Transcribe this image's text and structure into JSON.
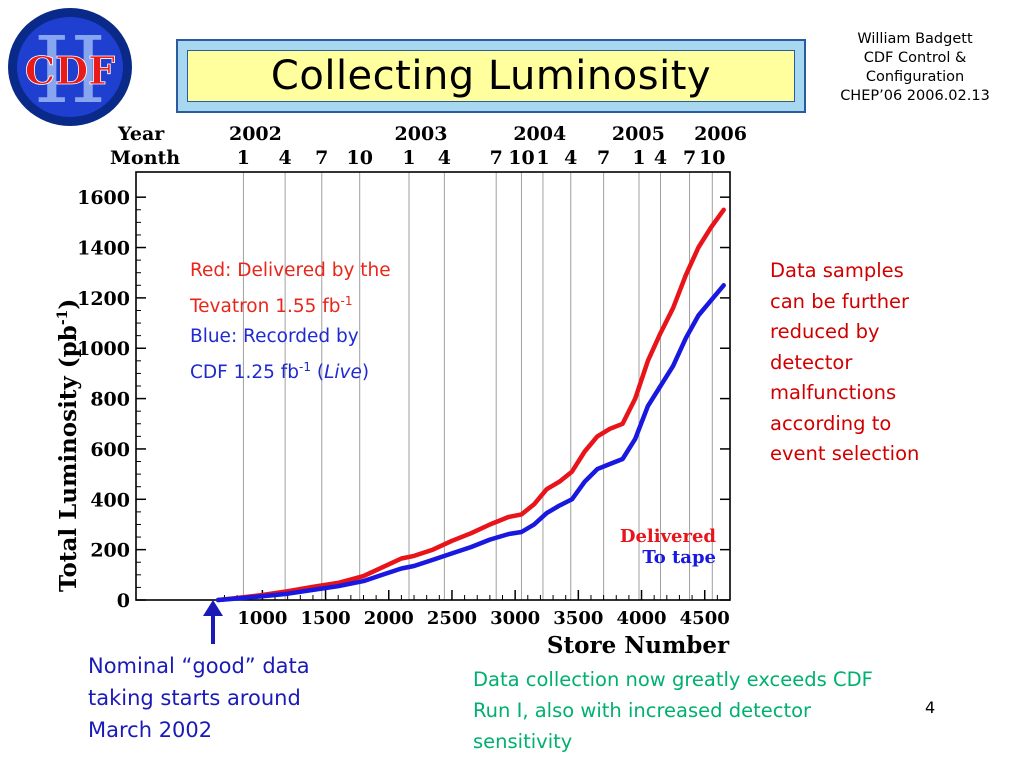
{
  "logo": {
    "text_cdf": "CDF",
    "text_roman": "II",
    "ring_color": "#0a2a8a",
    "fill_color": "#1f3fd0",
    "letter_color": "#e81a1a"
  },
  "title": "Collecting Luminosity",
  "author": [
    "William Badgett",
    "CDF Control &",
    "Configuration",
    "CHEP’06 2006.02.13"
  ],
  "chart_data": {
    "type": "line",
    "title": "",
    "xlabel": "Store Number",
    "ylabel": "Total Luminosity (pb",
    "ylabel_sup": "-1",
    "ylabel_close": ")",
    "xlim": [
      0,
      4700
    ],
    "ylim": [
      0,
      1700
    ],
    "x_ticks": [
      1000,
      1500,
      2000,
      2500,
      3000,
      3500,
      4000,
      4500
    ],
    "x_tick_labels": [
      "1000",
      "1500",
      "2000",
      "2500",
      "3000",
      "3500",
      "4000",
      "4500"
    ],
    "y_ticks": [
      0,
      200,
      400,
      600,
      800,
      1000,
      1200,
      1400,
      1600
    ],
    "y_tick_labels": [
      "0",
      "200",
      "400",
      "600",
      "800",
      "1000",
      "1200",
      "1400",
      "1600"
    ],
    "top_axis": {
      "year_label": "Year",
      "month_label": "Month",
      "years": [
        {
          "label": "2002",
          "x": 850
        },
        {
          "label": "2003",
          "x": 2160
        },
        {
          "label": "2004",
          "x": 3100
        },
        {
          "label": "2005",
          "x": 3880
        },
        {
          "label": "2006",
          "x": 4530
        }
      ],
      "months": [
        {
          "label": "1",
          "x": 850
        },
        {
          "label": "4",
          "x": 1180
        },
        {
          "label": "7",
          "x": 1470
        },
        {
          "label": "10",
          "x": 1770
        },
        {
          "label": "1",
          "x": 2160
        },
        {
          "label": "4",
          "x": 2440
        },
        {
          "label": "7",
          "x": 2850
        },
        {
          "label": "10",
          "x": 3050
        },
        {
          "label": "1",
          "x": 3220
        },
        {
          "label": "4",
          "x": 3440
        },
        {
          "label": "7",
          "x": 3700
        },
        {
          "label": "1",
          "x": 3980
        },
        {
          "label": "4",
          "x": 4150
        },
        {
          "label": "7",
          "x": 4380
        },
        {
          "label": "10",
          "x": 4560
        }
      ]
    },
    "vlines": [
      850,
      1180,
      1470,
      1770,
      2160,
      2440,
      2850,
      3050,
      3220,
      3440,
      3700,
      3980,
      4150,
      4380,
      4560
    ],
    "legend_placement": "bottom-right",
    "series": [
      {
        "name": "Delivered",
        "color": "#e8141a",
        "x": [
          650,
          800,
          1000,
          1200,
          1400,
          1600,
          1800,
          1950,
          2100,
          2200,
          2350,
          2500,
          2650,
          2800,
          2950,
          3050,
          3150,
          3250,
          3350,
          3450,
          3550,
          3650,
          3750,
          3850,
          3950,
          4050,
          4150,
          4250,
          4350,
          4450,
          4550,
          4650
        ],
        "y": [
          0,
          8,
          20,
          35,
          52,
          68,
          95,
          130,
          165,
          175,
          200,
          235,
          265,
          300,
          330,
          340,
          380,
          440,
          470,
          510,
          590,
          650,
          680,
          700,
          800,
          950,
          1060,
          1160,
          1290,
          1400,
          1480,
          1550
        ]
      },
      {
        "name": "To tape",
        "color": "#1818e0",
        "x": [
          650,
          800,
          1000,
          1200,
          1400,
          1600,
          1800,
          1950,
          2100,
          2200,
          2350,
          2500,
          2650,
          2800,
          2950,
          3050,
          3150,
          3250,
          3350,
          3450,
          3550,
          3650,
          3750,
          3850,
          3950,
          4050,
          4150,
          4250,
          4350,
          4450,
          4550,
          4650
        ],
        "y": [
          0,
          6,
          15,
          25,
          40,
          55,
          75,
          100,
          125,
          135,
          160,
          185,
          210,
          240,
          262,
          270,
          300,
          345,
          375,
          400,
          470,
          520,
          540,
          560,
          640,
          770,
          850,
          930,
          1040,
          1130,
          1190,
          1250
        ]
      }
    ]
  },
  "annotations": {
    "legend_red_line1": "Red: Delivered by the",
    "legend_red_line2": "Tevatron 1.55 fb",
    "legend_red_sup": "-1",
    "legend_blue_line1": "Blue: Recorded by",
    "legend_blue_line2_pre": "CDF 1.25 fb",
    "legend_blue_sup": "-1",
    "legend_blue_live_open": " (",
    "legend_blue_live": "Live",
    "legend_blue_live_close": ")",
    "samples": [
      "Data samples",
      "can be further",
      "reduced by",
      "detector",
      "malfunctions",
      "according to",
      "event selection"
    ],
    "nominal": [
      "Nominal “good” data",
      "taking starts around",
      "March 2002"
    ],
    "collection": [
      "Data collection now greatly exceeds CDF",
      "Run I, also with increased detector",
      "sensitivity"
    ],
    "page_number": "4"
  }
}
